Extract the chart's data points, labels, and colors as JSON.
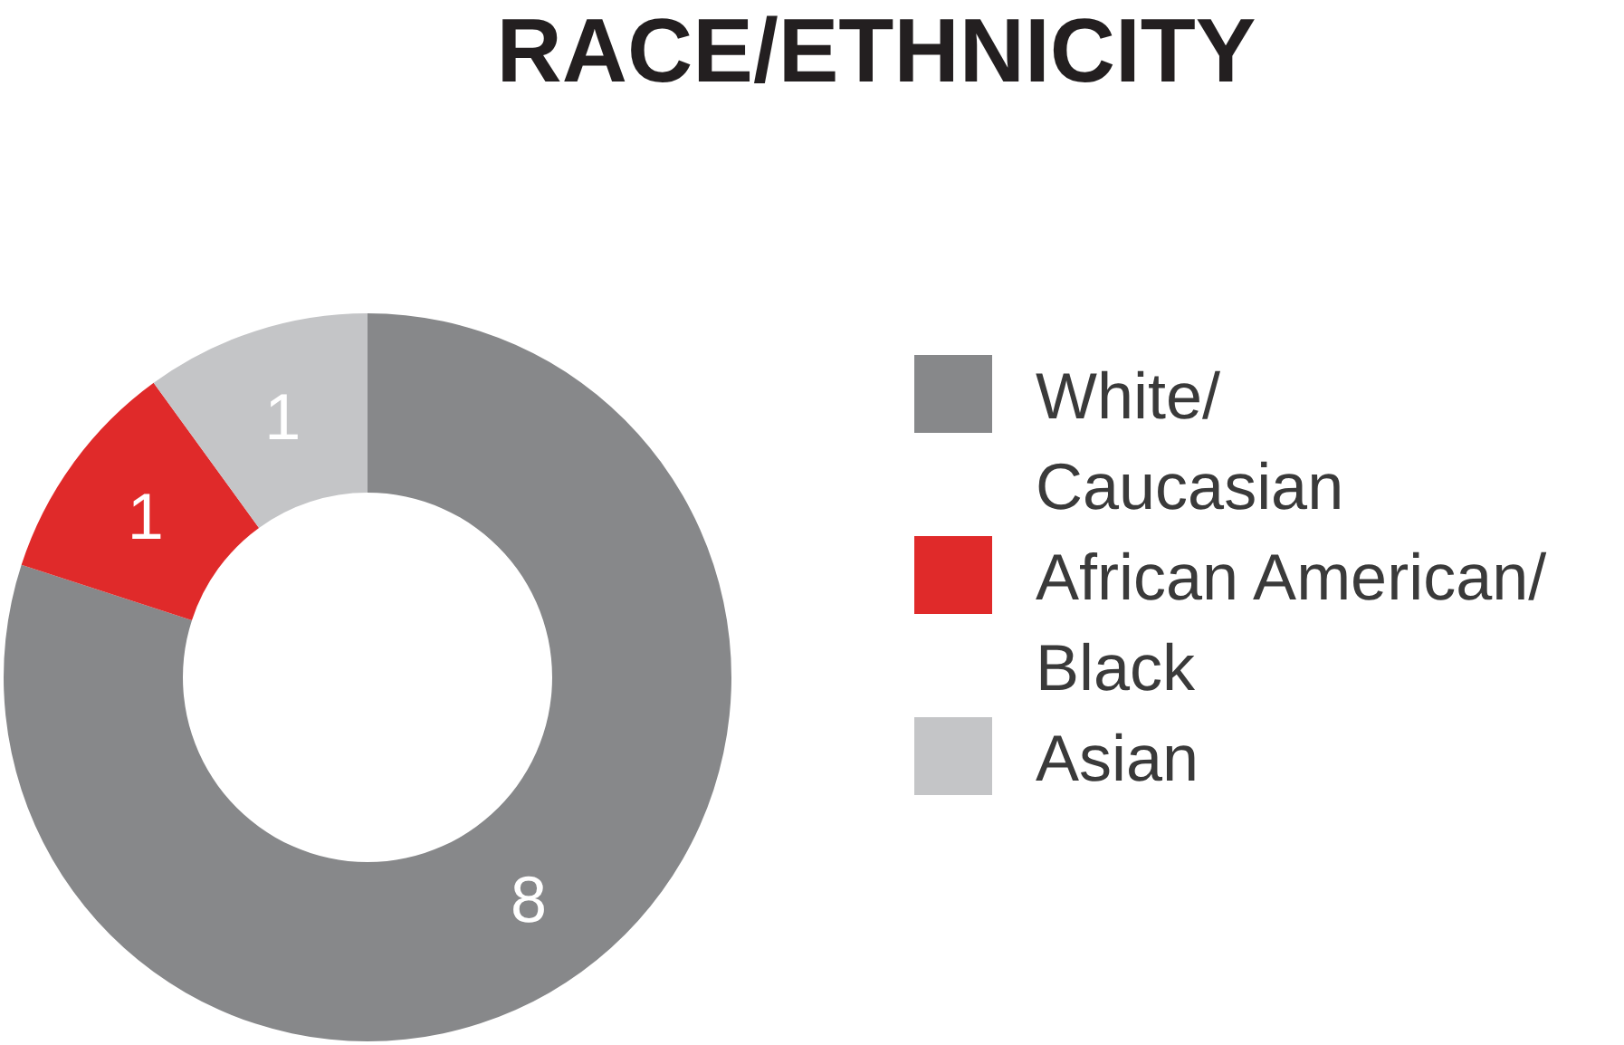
{
  "chart_data": {
    "type": "donut",
    "title": "RACE/ETHNICITY",
    "categories": [
      "White/\nCaucasian",
      "African American/\nBlack",
      "Asian"
    ],
    "values": [
      8,
      1,
      1
    ],
    "colors": [
      "#87888a",
      "#e02a2a",
      "#c4c5c7"
    ],
    "data_labels": true,
    "legend": "right"
  }
}
